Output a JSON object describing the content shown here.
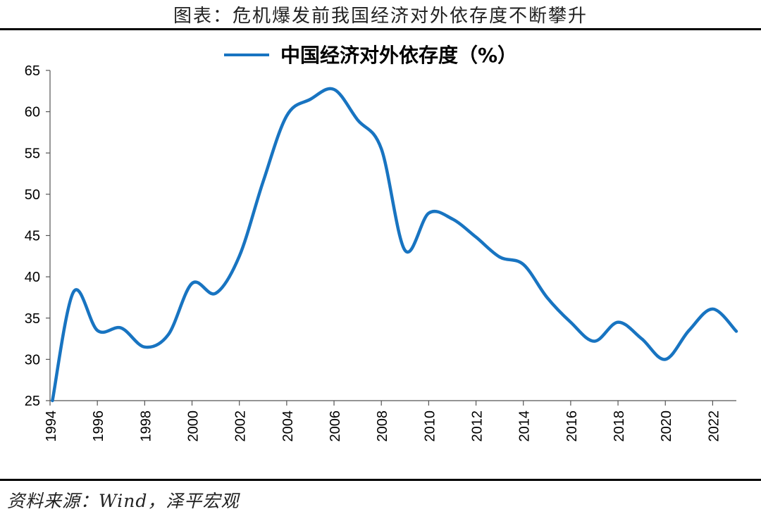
{
  "figure": {
    "title": "图表：危机爆发前我国经济对外依存度不断攀升",
    "source": "资料来源：Wind，泽平宏观"
  },
  "chart_data": {
    "type": "line",
    "title": "",
    "xlabel": "",
    "ylabel": "",
    "xlim": [
      1994,
      2023
    ],
    "ylim": [
      25,
      65
    ],
    "x_ticks": [
      1994,
      1996,
      1998,
      2000,
      2002,
      2004,
      2006,
      2008,
      2010,
      2012,
      2014,
      2016,
      2018,
      2020,
      2022
    ],
    "y_ticks": [
      25,
      30,
      35,
      40,
      45,
      50,
      55,
      60,
      65
    ],
    "legend_position": "top-center",
    "grid": false,
    "series": [
      {
        "name": "中国经济对外依存度（%）",
        "color": "#1874C1",
        "x": [
          1994.1,
          1995,
          1996,
          1997,
          1998,
          1999,
          2000,
          2001,
          2002,
          2003,
          2004,
          2005,
          2006,
          2007,
          2008,
          2009,
          2010,
          2011,
          2012,
          2013,
          2014,
          2015,
          2016,
          2017,
          2018,
          2019,
          2020,
          2021,
          2022,
          2023
        ],
        "values": [
          25,
          38.2,
          33.5,
          33.8,
          31.5,
          33.0,
          39.2,
          38.0,
          42.5,
          51.5,
          59.5,
          61.5,
          62.7,
          59.0,
          55.5,
          43.2,
          47.7,
          47.0,
          44.8,
          42.4,
          41.5,
          37.5,
          34.5,
          32.2,
          34.5,
          32.5,
          30.0,
          33.5,
          36.1,
          33.4
        ]
      }
    ]
  }
}
